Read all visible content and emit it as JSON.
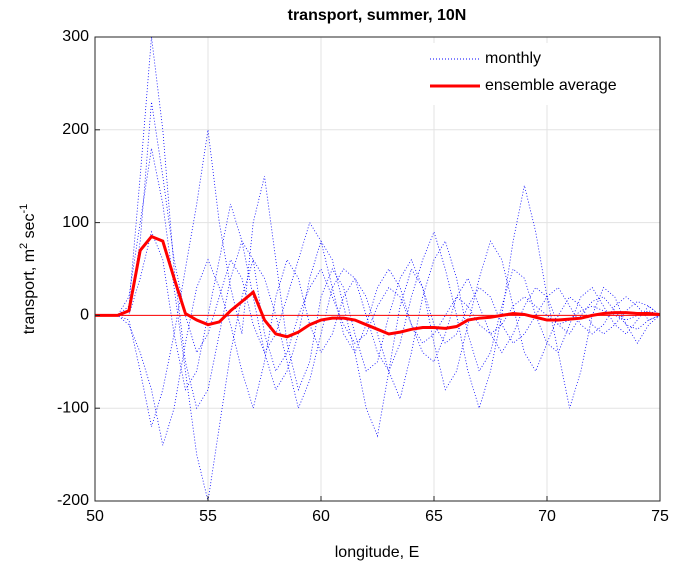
{
  "chart_data": {
    "type": "line",
    "title": "transport, summer, 10N",
    "xlabel": "longitude, E",
    "ylabel": [
      "transport, m",
      "2",
      " sec",
      "-1"
    ],
    "x": [
      50,
      50.5,
      51,
      51.5,
      52,
      52.5,
      53,
      53.5,
      54,
      54.5,
      55,
      55.5,
      56,
      56.5,
      57,
      57.5,
      58,
      58.5,
      59,
      59.5,
      60,
      60.5,
      61,
      61.5,
      62,
      62.5,
      63,
      63.5,
      64,
      64.5,
      65,
      65.5,
      66,
      66.5,
      67,
      67.5,
      68,
      68.5,
      69,
      69.5,
      70,
      70.5,
      71,
      71.5,
      72,
      72.5,
      73,
      73.5,
      74,
      74.5,
      75
    ],
    "series": [
      {
        "name": "monthly",
        "color": "#0000ff",
        "style": "dotted",
        "lines": [
          [
            0,
            0,
            0,
            10,
            150,
            300,
            200,
            50,
            -50,
            -100,
            -80,
            -20,
            40,
            80,
            60,
            -20,
            -60,
            -40,
            0,
            30,
            50,
            20,
            -10,
            -30,
            -20,
            10,
            30,
            20,
            -10,
            -30,
            -20,
            0,
            20,
            10,
            -10,
            -20,
            -10,
            10,
            20,
            10,
            0,
            -10,
            -5,
            5,
            10,
            5,
            0,
            -5,
            0,
            5,
            0
          ],
          [
            0,
            0,
            0,
            -5,
            -60,
            -120,
            -80,
            -20,
            50,
            120,
            200,
            100,
            30,
            -20,
            100,
            150,
            60,
            -30,
            -80,
            -50,
            20,
            50,
            30,
            -20,
            -60,
            -50,
            0,
            40,
            60,
            30,
            -30,
            -80,
            -60,
            -10,
            40,
            80,
            60,
            10,
            -40,
            -60,
            -30,
            0,
            20,
            10,
            -10,
            -20,
            -10,
            5,
            15,
            10,
            0
          ],
          [
            0,
            0,
            0,
            20,
            100,
            180,
            120,
            30,
            -60,
            -150,
            -200,
            -120,
            -40,
            20,
            60,
            40,
            0,
            -50,
            -100,
            -70,
            -20,
            30,
            50,
            40,
            0,
            -40,
            -60,
            -30,
            20,
            60,
            90,
            50,
            0,
            -60,
            -100,
            -60,
            0,
            80,
            140,
            90,
            20,
            -40,
            -100,
            -60,
            0,
            30,
            20,
            -10,
            -30,
            -10,
            0
          ],
          [
            0,
            0,
            0,
            0,
            40,
            90,
            60,
            -20,
            -80,
            -60,
            0,
            60,
            120,
            80,
            20,
            -40,
            -80,
            -60,
            -20,
            40,
            80,
            60,
            10,
            -40,
            -100,
            -130,
            -60,
            10,
            50,
            30,
            -10,
            -30,
            -20,
            10,
            30,
            20,
            -10,
            -30,
            -20,
            0,
            20,
            30,
            10,
            -10,
            -20,
            -10,
            10,
            20,
            10,
            -5,
            0
          ],
          [
            0,
            0,
            0,
            -10,
            -40,
            -80,
            -140,
            -100,
            -30,
            30,
            60,
            30,
            -10,
            -60,
            -100,
            -50,
            20,
            60,
            40,
            -10,
            -40,
            -20,
            20,
            40,
            20,
            -20,
            -60,
            -90,
            -40,
            20,
            60,
            80,
            40,
            -20,
            -60,
            -40,
            10,
            50,
            40,
            0,
            -30,
            -40,
            -10,
            20,
            30,
            10,
            -10,
            -20,
            -5,
            10,
            0
          ],
          [
            0,
            0,
            0,
            5,
            80,
            230,
            150,
            60,
            0,
            -40,
            -20,
            20,
            60,
            40,
            -10,
            -40,
            -20,
            20,
            60,
            100,
            80,
            30,
            -20,
            -40,
            -10,
            30,
            50,
            30,
            -10,
            -40,
            -50,
            -20,
            20,
            40,
            10,
            -20,
            -40,
            -20,
            10,
            30,
            20,
            -10,
            -20,
            0,
            15,
            20,
            5,
            -10,
            -15,
            -5,
            0
          ]
        ]
      },
      {
        "name": "ensemble average",
        "color": "#ff0000",
        "style": "solid",
        "values": [
          0,
          0,
          0,
          5,
          70,
          85,
          80,
          40,
          2,
          -5,
          -10,
          -7,
          5,
          15,
          25,
          -5,
          -20,
          -23,
          -18,
          -10,
          -5,
          -3,
          -3,
          -5,
          -10,
          -15,
          -20,
          -18,
          -15,
          -13,
          -13,
          -14,
          -12,
          -5,
          -3,
          -2,
          0,
          2,
          1,
          -2,
          -5,
          -5,
          -4,
          -3,
          0,
          2,
          3,
          3,
          2,
          2,
          1
        ]
      }
    ],
    "xlim": [
      50,
      75
    ],
    "xticks": [
      50,
      55,
      60,
      65,
      70,
      75
    ],
    "ylim": [
      -200,
      300
    ],
    "yticks": [
      -200,
      -100,
      0,
      100,
      200,
      300
    ],
    "grid": true,
    "legend": "upper right"
  }
}
